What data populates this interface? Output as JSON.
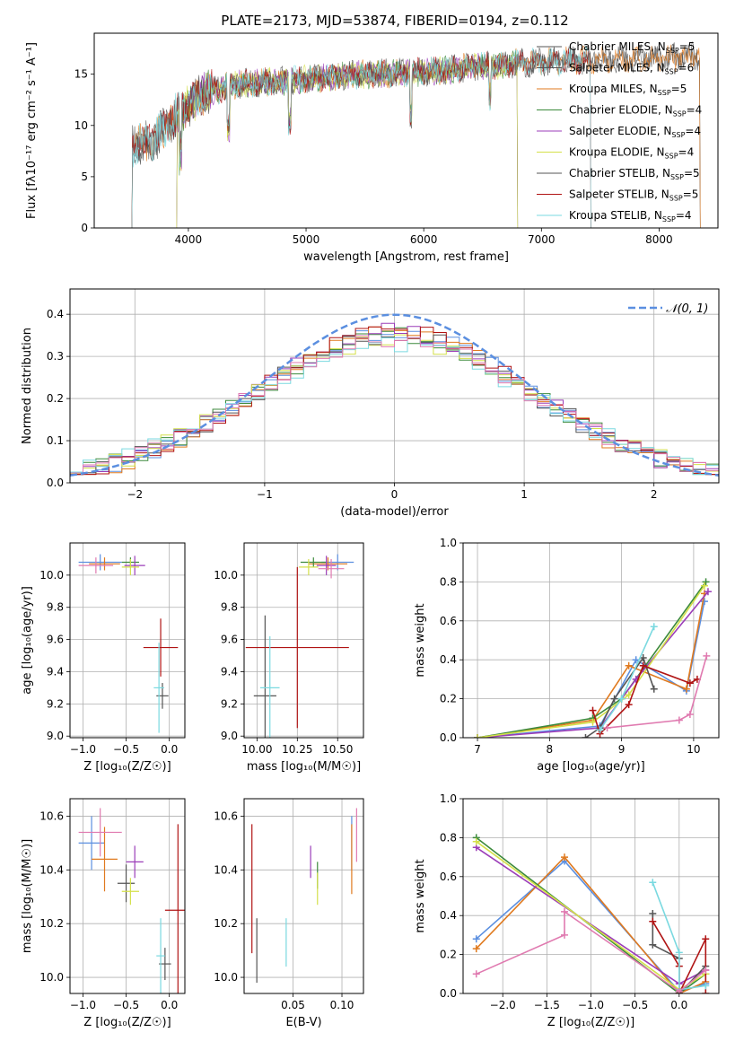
{
  "figure_title": "PLATE=2173, MJD=53874, FIBERID=0194, z=0.112",
  "colors": {
    "cornflower": "#5b8fe0",
    "orange": "#e07a1f",
    "green": "#3c8a3c",
    "purple": "#9b3db8",
    "yellow": "#d4e04a",
    "gray": "#555555",
    "darkred": "#b01414",
    "cyan": "#7ad9e0",
    "pink": "#e07ab0",
    "normal": "#5b8fe0",
    "grid": "#b0b0b0"
  },
  "chart_data": [
    {
      "id": "spectrum",
      "type": "line",
      "xlabel": "wavelength [Angstrom, rest frame]",
      "ylabel": "Flux [fλ10⁻¹⁷ erg cm⁻² s⁻¹ A⁻¹]",
      "xlim": [
        3200,
        8500
      ],
      "ylim": [
        0,
        19
      ],
      "xticks": [
        4000,
        5000,
        6000,
        7000,
        8000
      ],
      "yticks": [
        0,
        5,
        10,
        15
      ],
      "grid": false,
      "legend_position": "right",
      "series": [
        {
          "name": "Chabrier MILES, N_SSP=5",
          "color": "gray",
          "wmin": 3520,
          "wmax": 8350
        },
        {
          "name": "Salpeter MILES, N_SSP=6",
          "color": "gray",
          "wmin": 3520,
          "wmax": 8350
        },
        {
          "name": "Kroupa MILES, N_SSP=5",
          "color": "orange",
          "wmin": 3520,
          "wmax": 8350
        },
        {
          "name": "Chabrier ELODIE, N_SSP=4",
          "color": "green",
          "wmin": 3900,
          "wmax": 6800
        },
        {
          "name": "Salpeter ELODIE, N_SSP=4",
          "color": "purple",
          "wmin": 3900,
          "wmax": 6800
        },
        {
          "name": "Kroupa ELODIE, N_SSP=4",
          "color": "yellow",
          "wmin": 3900,
          "wmax": 6800
        },
        {
          "name": "Chabrier STELIB, N_SSP=5",
          "color": "gray",
          "wmin": 3520,
          "wmax": 7420
        },
        {
          "name": "Salpeter STELIB, N_SSP=5",
          "color": "darkred",
          "wmin": 3520,
          "wmax": 7420
        },
        {
          "name": "Kroupa STELIB, N_SSP=4",
          "color": "cyan",
          "wmin": 3520,
          "wmax": 7420
        }
      ],
      "legend_labels": [
        {
          "main": "Chabrier MILES, N",
          "sub": "SSP",
          "tail": "=5",
          "color": "gray"
        },
        {
          "main": "Salpeter MILES, N",
          "sub": "SSP",
          "tail": "=6",
          "color": "gray"
        },
        {
          "main": "Kroupa MILES, N",
          "sub": "SSP",
          "tail": "=5",
          "color": "orange"
        },
        {
          "main": "Chabrier ELODIE, N",
          "sub": "SSP",
          "tail": "=4",
          "color": "green"
        },
        {
          "main": "Salpeter ELODIE, N",
          "sub": "SSP",
          "tail": "=4",
          "color": "purple"
        },
        {
          "main": "Kroupa ELODIE, N",
          "sub": "SSP",
          "tail": "=4",
          "color": "yellow"
        },
        {
          "main": "Chabrier STELIB, N",
          "sub": "SSP",
          "tail": "=5",
          "color": "gray"
        },
        {
          "main": "Salpeter STELIB, N",
          "sub": "SSP",
          "tail": "=5",
          "color": "darkred"
        },
        {
          "main": "Kroupa STELIB, N",
          "sub": "SSP",
          "tail": "=4",
          "color": "cyan"
        }
      ],
      "continuum_knots": [
        [
          3520,
          8.0
        ],
        [
          3700,
          8.5
        ],
        [
          3900,
          11.0
        ],
        [
          4100,
          13.0
        ],
        [
          4400,
          14.0
        ],
        [
          5000,
          14.5
        ],
        [
          5500,
          15.0
        ],
        [
          6000,
          15.2
        ],
        [
          6500,
          15.8
        ],
        [
          7000,
          16.2
        ],
        [
          7500,
          16.4
        ],
        [
          8000,
          16.5
        ],
        [
          8350,
          16.8
        ]
      ]
    },
    {
      "id": "residuals",
      "type": "line",
      "xlabel": "(data-model)/error",
      "ylabel": "Normed distribution",
      "xlim": [
        -2.5,
        2.5
      ],
      "ylim": [
        0,
        0.46
      ],
      "xticks": [
        -2,
        -1,
        0,
        1,
        2
      ],
      "yticks": [
        0.0,
        0.1,
        0.2,
        0.3,
        0.4
      ],
      "grid": true,
      "legend": "𝒩(0, 1)",
      "legend_position": "top-right",
      "bin_width": 0.1,
      "series": [
        {
          "color": "cornflower",
          "peak": 0.36,
          "sigma": 1.05
        },
        {
          "color": "orange",
          "peak": 0.36,
          "sigma": 1.04
        },
        {
          "color": "green",
          "peak": 0.35,
          "sigma": 1.08
        },
        {
          "color": "purple",
          "peak": 0.36,
          "sigma": 1.06
        },
        {
          "color": "yellow",
          "peak": 0.34,
          "sigma": 1.1
        },
        {
          "color": "gray",
          "peak": 0.35,
          "sigma": 1.07
        },
        {
          "color": "darkred",
          "peak": 0.36,
          "sigma": 1.06
        },
        {
          "color": "cyan",
          "peak": 0.33,
          "sigma": 1.12
        },
        {
          "color": "pink",
          "peak": 0.34,
          "sigma": 1.09
        }
      ]
    },
    {
      "id": "age_vs_Z",
      "type": "scatter",
      "xlabel": "Z [log₁₀(Z/Z☉)]",
      "ylabel": "age  [log₁₀(age/yr)]",
      "xlim": [
        -1.15,
        0.18
      ],
      "ylim": [
        8.99,
        10.2
      ],
      "xticks": [
        -1.0,
        -0.5,
        0.0
      ],
      "yticks": [
        9.0,
        9.2,
        9.4,
        9.6,
        9.8,
        10.0
      ],
      "grid": true,
      "points": [
        {
          "x": -0.8,
          "y": 10.08,
          "xerr": 0.25,
          "yerr": 0.05,
          "color": "cornflower"
        },
        {
          "x": -0.75,
          "y": 10.07,
          "xerr": 0.18,
          "yerr": 0.04,
          "color": "orange"
        },
        {
          "x": -0.45,
          "y": 10.08,
          "xerr": 0.1,
          "yerr": 0.03,
          "color": "green"
        },
        {
          "x": -0.4,
          "y": 10.06,
          "xerr": 0.12,
          "yerr": 0.06,
          "color": "purple"
        },
        {
          "x": -0.45,
          "y": 10.05,
          "xerr": 0.1,
          "yerr": 0.05,
          "color": "yellow"
        },
        {
          "x": -0.08,
          "y": 9.25,
          "xerr": 0.07,
          "yerr": 0.08,
          "color": "gray"
        },
        {
          "x": -0.1,
          "y": 9.55,
          "xerr": 0.2,
          "yerr": 0.18,
          "color": "darkred"
        },
        {
          "x": -0.12,
          "y": 9.3,
          "xerr": 0.06,
          "yerr": 0.28,
          "color": "cyan"
        },
        {
          "x": -0.85,
          "y": 10.06,
          "xerr": 0.2,
          "yerr": 0.05,
          "color": "pink"
        }
      ]
    },
    {
      "id": "age_vs_mass",
      "type": "scatter",
      "xlabel": "mass [log₁₀(M/M☉)]",
      "ylabel": "",
      "xlim": [
        9.92,
        10.66
      ],
      "ylim": [
        8.99,
        10.2
      ],
      "xticks": [
        10.0,
        10.25,
        10.5
      ],
      "yticks": [
        9.0,
        9.2,
        9.4,
        9.6,
        9.8,
        10.0
      ],
      "grid": true,
      "points": [
        {
          "x": 10.5,
          "y": 10.08,
          "xerr": 0.1,
          "yerr": 0.05,
          "color": "cornflower"
        },
        {
          "x": 10.44,
          "y": 10.07,
          "xerr": 0.12,
          "yerr": 0.04,
          "color": "orange"
        },
        {
          "x": 10.35,
          "y": 10.08,
          "xerr": 0.08,
          "yerr": 0.03,
          "color": "green"
        },
        {
          "x": 10.43,
          "y": 10.06,
          "xerr": 0.06,
          "yerr": 0.06,
          "color": "purple"
        },
        {
          "x": 10.32,
          "y": 10.05,
          "xerr": 0.06,
          "yerr": 0.05,
          "color": "yellow"
        },
        {
          "x": 10.05,
          "y": 9.25,
          "xerr": 0.07,
          "yerr": 0.5,
          "color": "gray"
        },
        {
          "x": 10.25,
          "y": 9.55,
          "xerr": 0.32,
          "yerr": 0.5,
          "color": "darkred"
        },
        {
          "x": 10.08,
          "y": 9.3,
          "xerr": 0.06,
          "yerr": 0.32,
          "color": "cyan"
        },
        {
          "x": 10.46,
          "y": 10.04,
          "xerr": 0.08,
          "yerr": 0.06,
          "color": "pink"
        }
      ]
    },
    {
      "id": "mass_weight_vs_age",
      "type": "line",
      "xlabel": "age  [log₁₀(age/yr)]",
      "ylabel": "mass weight",
      "xlim": [
        6.8,
        10.35
      ],
      "ylim": [
        0,
        1.0
      ],
      "xticks": [
        7,
        8,
        9,
        10
      ],
      "yticks": [
        0.0,
        0.2,
        0.4,
        0.6,
        0.8,
        1.0
      ],
      "grid": true,
      "series": [
        {
          "color": "cornflower",
          "points": [
            [
              7.0,
              0.0
            ],
            [
              8.7,
              0.06
            ],
            [
              9.2,
              0.4
            ],
            [
              9.9,
              0.24
            ],
            [
              10.15,
              0.7
            ]
          ]
        },
        {
          "color": "orange",
          "points": [
            [
              7.0,
              0.0
            ],
            [
              8.6,
              0.09
            ],
            [
              9.1,
              0.37
            ],
            [
              9.9,
              0.25
            ],
            [
              10.15,
              0.74
            ]
          ]
        },
        {
          "color": "green",
          "points": [
            [
              7.0,
              0.0
            ],
            [
              8.6,
              0.1
            ],
            [
              9.0,
              0.2
            ],
            [
              10.17,
              0.8
            ]
          ]
        },
        {
          "color": "purple",
          "points": [
            [
              7.0,
              0.0
            ],
            [
              8.7,
              0.05
            ],
            [
              9.2,
              0.3
            ],
            [
              10.2,
              0.75
            ]
          ]
        },
        {
          "color": "yellow",
          "points": [
            [
              7.0,
              0.0
            ],
            [
              8.6,
              0.08
            ],
            [
              9.1,
              0.22
            ],
            [
              10.15,
              0.78
            ]
          ]
        },
        {
          "color": "gray",
          "points": [
            [
              8.5,
              0.0
            ],
            [
              8.7,
              0.05
            ],
            [
              8.9,
              0.2
            ],
            [
              9.3,
              0.41
            ],
            [
              9.45,
              0.25
            ]
          ]
        },
        {
          "color": "darkred",
          "points": [
            [
              8.6,
              0.14
            ],
            [
              8.7,
              0.02
            ],
            [
              9.1,
              0.17
            ],
            [
              9.3,
              0.37
            ],
            [
              9.95,
              0.28
            ],
            [
              10.05,
              0.3
            ]
          ]
        },
        {
          "color": "cyan",
          "points": [
            [
              8.7,
              0.04
            ],
            [
              9.0,
              0.2
            ],
            [
              9.45,
              0.57
            ]
          ]
        },
        {
          "color": "pink",
          "points": [
            [
              8.8,
              0.05
            ],
            [
              9.8,
              0.09
            ],
            [
              9.95,
              0.12
            ],
            [
              10.18,
              0.42
            ]
          ]
        }
      ]
    },
    {
      "id": "mass_vs_Z",
      "type": "scatter",
      "xlabel": "Z [log₁₀(Z/Z☉)]",
      "ylabel": "mass [log₁₀(M/M☉)]",
      "xlim": [
        -1.15,
        0.18
      ],
      "ylim": [
        9.94,
        10.665
      ],
      "xticks": [
        -1.0,
        -0.5,
        0.0
      ],
      "yticks": [
        10.0,
        10.2,
        10.4,
        10.6
      ],
      "grid": true,
      "points": [
        {
          "x": -0.9,
          "y": 10.5,
          "xerr": 0.15,
          "yerr": 0.1,
          "color": "cornflower"
        },
        {
          "x": -0.75,
          "y": 10.44,
          "xerr": 0.15,
          "yerr": 0.12,
          "color": "orange"
        },
        {
          "x": -0.5,
          "y": 10.35,
          "xerr": 0.1,
          "yerr": 0.07,
          "color": "gray"
        },
        {
          "x": -0.4,
          "y": 10.43,
          "xerr": 0.1,
          "yerr": 0.06,
          "color": "purple"
        },
        {
          "x": -0.45,
          "y": 10.32,
          "xerr": 0.1,
          "yerr": 0.05,
          "color": "yellow"
        },
        {
          "x": -0.05,
          "y": 10.05,
          "xerr": 0.07,
          "yerr": 0.06,
          "color": "gray"
        },
        {
          "x": 0.1,
          "y": 10.25,
          "xerr": 0.15,
          "yerr": 0.32,
          "color": "darkred"
        },
        {
          "x": -0.1,
          "y": 10.08,
          "xerr": 0.05,
          "yerr": 0.14,
          "color": "cyan"
        },
        {
          "x": -0.8,
          "y": 10.54,
          "xerr": 0.25,
          "yerr": 0.09,
          "color": "pink"
        }
      ]
    },
    {
      "id": "mass_vs_EBV",
      "type": "scatter",
      "xlabel": "E(B-V)",
      "ylabel": "",
      "xlim": [
        0.0,
        0.122
      ],
      "ylim": [
        9.94,
        10.665
      ],
      "xticks": [
        0.05,
        0.1
      ],
      "yticks": [
        10.0,
        10.2,
        10.4,
        10.6
      ],
      "grid": true,
      "points": [
        {
          "x": 0.11,
          "y": 10.5,
          "xerr": 0.0,
          "yerr": 0.1,
          "color": "cornflower"
        },
        {
          "x": 0.11,
          "y": 10.44,
          "xerr": 0.0,
          "yerr": 0.13,
          "color": "orange"
        },
        {
          "x": 0.075,
          "y": 10.38,
          "xerr": 0.0,
          "yerr": 0.05,
          "color": "green"
        },
        {
          "x": 0.068,
          "y": 10.43,
          "xerr": 0.0,
          "yerr": 0.06,
          "color": "purple"
        },
        {
          "x": 0.075,
          "y": 10.33,
          "xerr": 0.0,
          "yerr": 0.06,
          "color": "yellow"
        },
        {
          "x": 0.013,
          "y": 10.1,
          "xerr": 0.0,
          "yerr": 0.12,
          "color": "gray"
        },
        {
          "x": 0.008,
          "y": 10.33,
          "xerr": 0.0,
          "yerr": 0.24,
          "color": "darkred"
        },
        {
          "x": 0.043,
          "y": 10.13,
          "xerr": 0.0,
          "yerr": 0.09,
          "color": "cyan"
        },
        {
          "x": 0.115,
          "y": 10.53,
          "xerr": 0.0,
          "yerr": 0.1,
          "color": "pink"
        }
      ]
    },
    {
      "id": "mass_weight_vs_Z",
      "type": "line",
      "xlabel": "Z [log₁₀(Z/Z☉)]",
      "ylabel": "mass weight",
      "xlim": [
        -2.45,
        0.45
      ],
      "ylim": [
        0,
        1.0
      ],
      "xticks": [
        -2.0,
        -1.5,
        -1.0,
        -0.5,
        0.0
      ],
      "yticks": [
        0.0,
        0.2,
        0.4,
        0.6,
        0.8,
        1.0
      ],
      "grid": true,
      "series": [
        {
          "color": "cornflower",
          "points": [
            [
              -2.3,
              0.28
            ],
            [
              -1.3,
              0.68
            ],
            [
              0.0,
              0.01
            ],
            [
              0.3,
              0.05
            ]
          ]
        },
        {
          "color": "orange",
          "points": [
            [
              -2.3,
              0.23
            ],
            [
              -1.3,
              0.7
            ],
            [
              0.0,
              0.0
            ],
            [
              0.3,
              0.06
            ]
          ]
        },
        {
          "color": "green",
          "points": [
            [
              -2.3,
              0.8
            ],
            [
              0.0,
              0.0
            ],
            [
              0.3,
              0.1
            ]
          ]
        },
        {
          "color": "purple",
          "points": [
            [
              -2.3,
              0.75
            ],
            [
              0.0,
              0.05
            ],
            [
              0.3,
              0.12
            ]
          ]
        },
        {
          "color": "yellow",
          "points": [
            [
              -2.3,
              0.78
            ],
            [
              0.0,
              0.02
            ],
            [
              0.3,
              0.1
            ]
          ]
        },
        {
          "color": "gray",
          "points": [
            [
              -0.3,
              0.41
            ],
            [
              -0.3,
              0.25
            ],
            [
              0.0,
              0.18
            ],
            [
              0.0,
              0.0
            ],
            [
              0.3,
              0.14
            ]
          ]
        },
        {
          "color": "darkred",
          "points": [
            [
              -0.3,
              0.37
            ],
            [
              0.0,
              0.14
            ],
            [
              0.0,
              0.0
            ],
            [
              0.3,
              0.28
            ],
            [
              0.3,
              0.0
            ]
          ]
        },
        {
          "color": "cyan",
          "points": [
            [
              -0.3,
              0.57
            ],
            [
              0.0,
              0.21
            ],
            [
              0.0,
              0.02
            ],
            [
              0.3,
              0.04
            ]
          ]
        },
        {
          "color": "pink",
          "points": [
            [
              -2.3,
              0.1
            ],
            [
              -1.3,
              0.3
            ],
            [
              -1.3,
              0.42
            ],
            [
              0.0,
              0.01
            ],
            [
              0.3,
              0.12
            ]
          ]
        }
      ]
    }
  ]
}
